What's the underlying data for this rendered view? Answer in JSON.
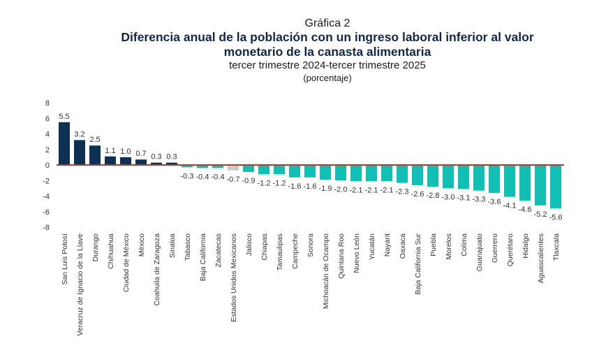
{
  "header": {
    "label": "Gráfica 2",
    "title_line1": "Diferencia anual de la población con un ingreso laboral inferior al valor",
    "title_line2": "monetario de la canasta alimentaria",
    "subtitle": "tercer trimestre 2024-tercer trimestre 2025",
    "unit": "(porcentaje)"
  },
  "colors": {
    "positive": "#0d3055",
    "negative": "#12bfb5",
    "national": "#cccccc",
    "zero_line": "#b83a22"
  },
  "chart_data": {
    "type": "bar",
    "title": "Diferencia anual de la población con un ingreso laboral inferior al valor monetario de la canasta alimentaria",
    "subtitle": "tercer trimestre 2024-tercer trimestre 2025",
    "ylabel": "(porcentaje)",
    "xlabel": "",
    "ylim": [
      -8,
      8
    ],
    "yticks": [
      8,
      6,
      4,
      2,
      0,
      -2,
      -4,
      -6,
      -8
    ],
    "grid": false,
    "legend": "none",
    "highlight_category": "Estados Unidos Mexicanos",
    "categories": [
      "San Luis Potosí",
      "Veracruz de Ignacio de la Llave",
      "Durango",
      "Chihuahua",
      "Ciudad de México",
      "México",
      "Coahuila de Zaragoza",
      "Sinaloa",
      "Tabasco",
      "Baja California",
      "Zacatecas",
      "Estados Unidos Mexicanos",
      "Jalisco",
      "Chiapas",
      "Tamaulipas",
      "Campeche",
      "Sonora",
      "Michoacán de Ocampo",
      "Quintana Roo",
      "Nuevo León",
      "Yucatán",
      "Nayarit",
      "Oaxaca",
      "Baja California Sur",
      "Puebla",
      "Morelos",
      "Colima",
      "Guanajuato",
      "Guerrero",
      "Querétaro",
      "Hidalgo",
      "Aguascalientes",
      "Tlaxcala"
    ],
    "values": [
      5.5,
      3.2,
      2.5,
      1.1,
      1.0,
      0.7,
      0.3,
      0.3,
      -0.3,
      -0.4,
      -0.4,
      -0.7,
      -0.9,
      -1.2,
      -1.2,
      -1.6,
      -1.6,
      -1.9,
      -2.0,
      -2.1,
      -2.1,
      -2.1,
      -2.3,
      -2.6,
      -2.8,
      -3.0,
      -3.1,
      -3.3,
      -3.6,
      -4.1,
      -4.6,
      -5.2,
      -5.6
    ],
    "data_labels": [
      "5.5",
      "3.2",
      "2.5",
      "1.1",
      "1.0",
      "0.7",
      "0.3",
      "0.3",
      "-0.3",
      "-0.4",
      "-0.4",
      "-0.7",
      "-0.9",
      "-1.2",
      "-1.2",
      "-1.6",
      "-1.6",
      "-1.9",
      "-2.0",
      "-2.1",
      "-2.1",
      "-2.1",
      "-2.3",
      "-2.6",
      "-2.8",
      "-3.0",
      "-3.1",
      "-3.3",
      "-3.6",
      "-4.1",
      "-4.6",
      "-5.2",
      "-5.6"
    ]
  }
}
